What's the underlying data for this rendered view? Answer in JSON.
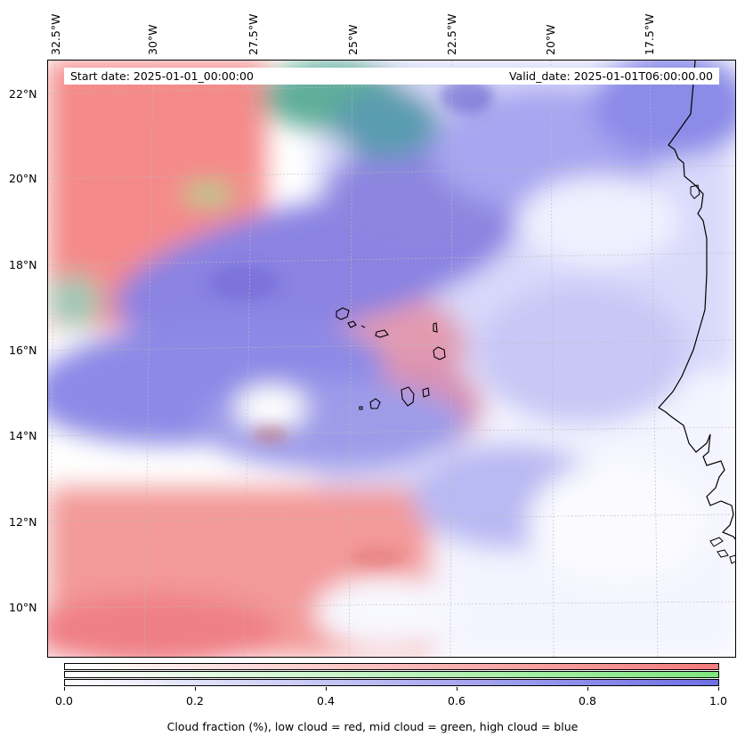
{
  "map": {
    "lon_labels": [
      "32.5°W",
      "30°W",
      "27.5°W",
      "25°W",
      "22.5°W",
      "20°W",
      "17.5°W"
    ],
    "lat_labels": [
      "22°N",
      "20°N",
      "18°N",
      "16°N",
      "14°N",
      "12°N",
      "10°N"
    ],
    "start_date": "Start date: 2025-01-01_00:00:00",
    "valid_date": "Valid_date: 2025-01-01T06:00:00.00",
    "layers": [
      {
        "name": "low cloud",
        "color": "#f37b7b"
      },
      {
        "name": "mid cloud",
        "color": "#7fe67f"
      },
      {
        "name": "high cloud",
        "color": "#6f6fe6"
      }
    ],
    "features": [
      "Cape Verde islands",
      "West African coastline"
    ]
  },
  "colorbar": {
    "ticks": [
      "0.0",
      "0.2",
      "0.4",
      "0.6",
      "0.8",
      "1.0"
    ],
    "label": "Cloud fraction (%), low cloud = red, mid cloud = green, high cloud = blue"
  }
}
